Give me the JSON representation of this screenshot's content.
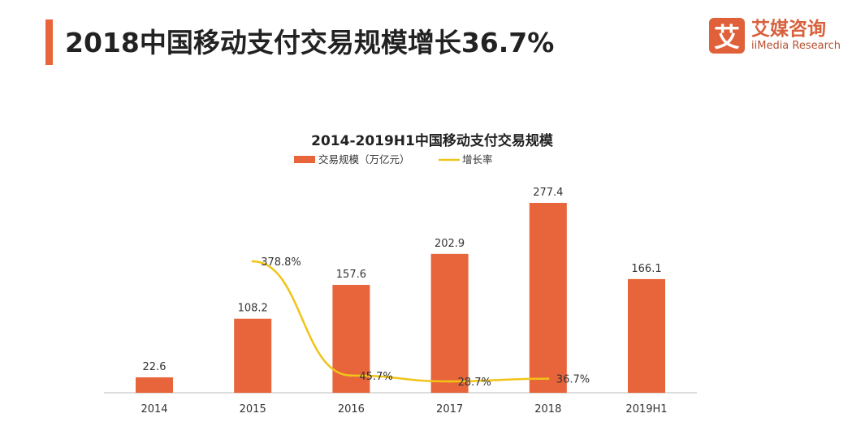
{
  "header": {
    "title": "2018中国移动支付交易规模增长36.7%"
  },
  "logo": {
    "mark": "艾",
    "name_cn": "艾媒咨询",
    "name_en": "iiMedia Research"
  },
  "colors": {
    "accent": "#e8643a",
    "bar": "#e8643a",
    "line": "#f0c419"
  },
  "chart_data": {
    "type": "bar",
    "title": "2014-2019H1中国移动支付交易规模",
    "legend_position": "top",
    "grid": false,
    "categories": [
      "2014",
      "2015",
      "2016",
      "2017",
      "2018",
      "2019H1"
    ],
    "series": [
      {
        "name": "交易规模（万亿元）",
        "type": "bar",
        "values": [
          22.6,
          108.2,
          157.6,
          202.9,
          277.4,
          166.1
        ],
        "labels": [
          "22.6",
          "108.2",
          "157.6",
          "202.9",
          "277.4",
          "166.1"
        ]
      },
      {
        "name": "增长率",
        "type": "line",
        "values": [
          null,
          378.8,
          45.7,
          28.7,
          36.7,
          null
        ],
        "labels": [
          null,
          "378.8%",
          "45.7%",
          "28.7%",
          "36.7%",
          null
        ]
      }
    ]
  }
}
